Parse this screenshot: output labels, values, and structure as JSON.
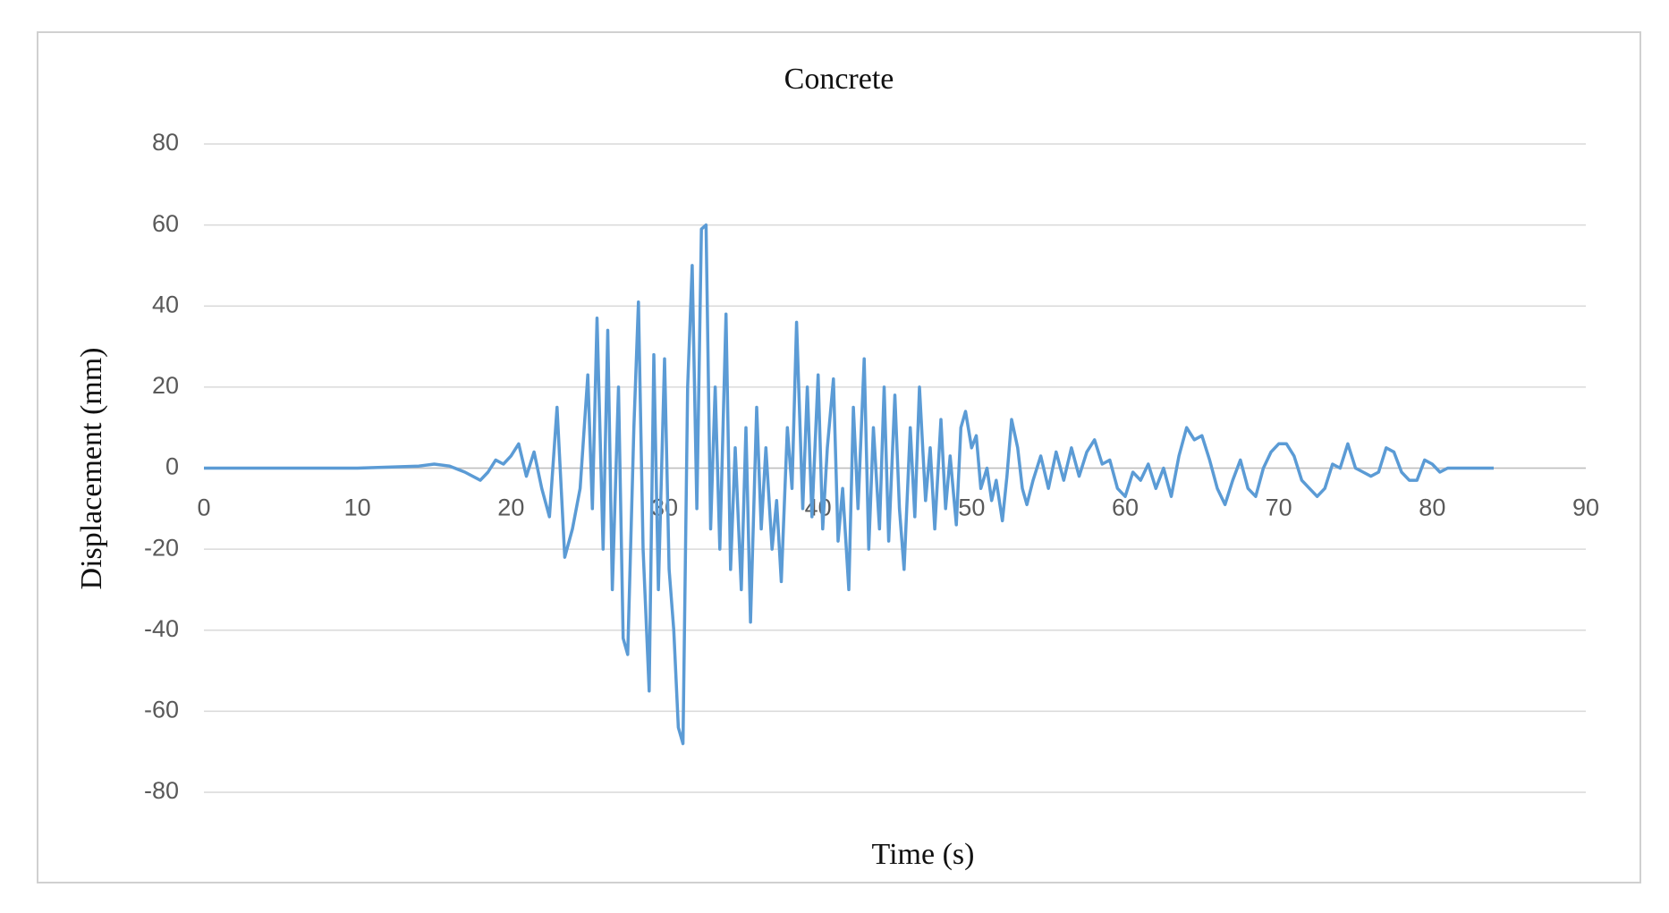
{
  "chart_data": {
    "type": "line",
    "title": "Concrete",
    "x_label": "Time (s)",
    "y_label": "Displacement (mm)",
    "xlim": [
      0,
      90
    ],
    "xticks": [
      0,
      10,
      20,
      30,
      40,
      50,
      60,
      70,
      80,
      90
    ],
    "ylim": [
      -80,
      80
    ],
    "yticks": [
      -80,
      -60,
      -40,
      -20,
      0,
      20,
      40,
      60,
      80
    ],
    "grid": true,
    "series": [
      {
        "color": "#5b9bd5",
        "x": [
          0,
          5,
          10,
          14,
          15,
          16,
          17,
          18,
          18.5,
          19,
          19.5,
          20,
          20.5,
          21,
          21.5,
          22,
          22.5,
          23,
          23.5,
          24,
          24.5,
          25,
          25.3,
          25.6,
          26,
          26.3,
          26.6,
          27,
          27.3,
          27.6,
          28,
          28.3,
          28.6,
          29,
          29.3,
          29.6,
          30,
          30.3,
          30.6,
          30.9,
          31.2,
          31.5,
          31.8,
          32.1,
          32.4,
          32.7,
          33,
          33.3,
          33.6,
          34,
          34.3,
          34.6,
          35,
          35.3,
          35.6,
          36,
          36.3,
          36.6,
          37,
          37.3,
          37.6,
          38,
          38.3,
          38.6,
          39,
          39.3,
          39.6,
          40,
          40.3,
          40.6,
          41,
          41.3,
          41.6,
          42,
          42.3,
          42.6,
          43,
          43.3,
          43.6,
          44,
          44.3,
          44.6,
          45,
          45.3,
          45.6,
          46,
          46.3,
          46.6,
          47,
          47.3,
          47.6,
          48,
          48.3,
          48.6,
          49,
          49.3,
          49.6,
          50,
          50.3,
          50.6,
          51,
          51.3,
          51.6,
          52,
          52.3,
          52.6,
          53,
          53.3,
          53.6,
          54,
          54.5,
          55,
          55.5,
          56,
          56.5,
          57,
          57.5,
          58,
          58.5,
          59,
          59.5,
          60,
          60.5,
          61,
          61.5,
          62,
          62.5,
          63,
          63.5,
          64,
          64.5,
          65,
          65.5,
          66,
          66.5,
          67,
          67.5,
          68,
          68.5,
          69,
          69.5,
          70,
          70.5,
          71,
          71.5,
          72,
          72.5,
          73,
          73.5,
          74,
          74.5,
          75,
          75.5,
          76,
          76.5,
          77,
          77.5,
          78,
          78.5,
          79,
          79.5,
          80,
          80.5,
          81,
          82,
          84
        ],
        "values": [
          0,
          0,
          0,
          0.5,
          1,
          0.5,
          -1,
          -3,
          -1,
          2,
          1,
          3,
          6,
          -2,
          4,
          -5,
          -12,
          15,
          -22,
          -15,
          -5,
          23,
          -10,
          37,
          -20,
          34,
          -30,
          20,
          -42,
          -46,
          10,
          41,
          -20,
          -55,
          28,
          -30,
          27,
          -25,
          -40,
          -64,
          -68,
          20,
          50,
          -10,
          59,
          60,
          -15,
          20,
          -20,
          38,
          -25,
          5,
          -30,
          10,
          -38,
          15,
          -15,
          5,
          -20,
          -8,
          -28,
          10,
          -5,
          36,
          -10,
          20,
          -12,
          23,
          -15,
          5,
          22,
          -18,
          -5,
          -30,
          15,
          -10,
          27,
          -20,
          10,
          -15,
          20,
          -18,
          18,
          -10,
          -25,
          10,
          -12,
          20,
          -8,
          5,
          -15,
          12,
          -10,
          3,
          -14,
          10,
          14,
          5,
          8,
          -5,
          0,
          -8,
          -3,
          -13,
          -2,
          12,
          5,
          -5,
          -9,
          -3,
          3,
          -5,
          4,
          -3,
          5,
          -2,
          4,
          7,
          1,
          2,
          -5,
          -7,
          -1,
          -3,
          1,
          -5,
          0,
          -7,
          3,
          10,
          7,
          8,
          2,
          -5,
          -9,
          -3,
          2,
          -5,
          -7,
          0,
          4,
          6,
          6,
          3,
          -3,
          -5,
          -7,
          -5,
          1,
          0,
          6,
          0,
          -1,
          -2,
          -1,
          5,
          4,
          -1,
          -3,
          -3,
          2,
          1,
          -1,
          0,
          0,
          0
        ]
      }
    ]
  }
}
